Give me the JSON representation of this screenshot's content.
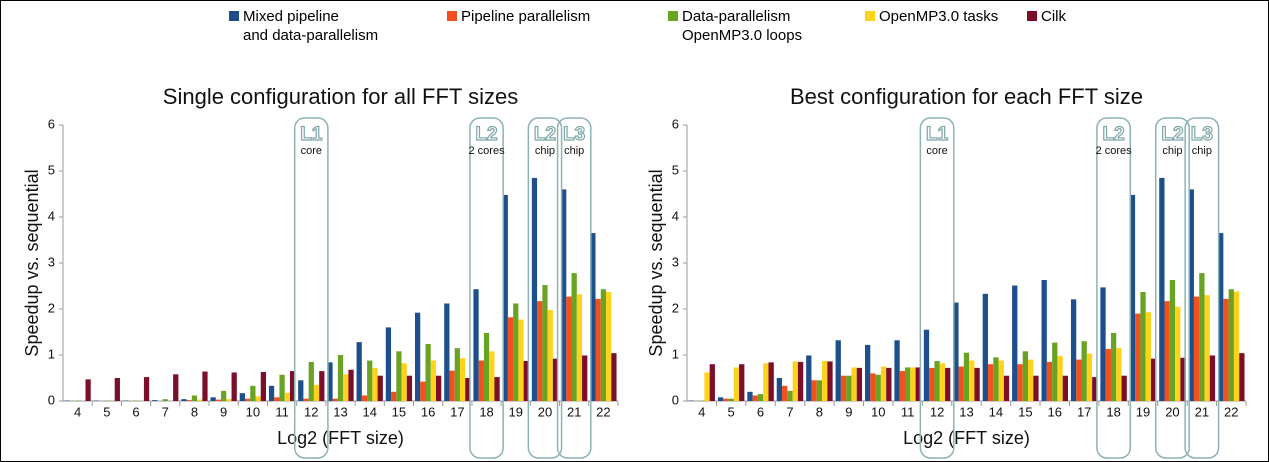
{
  "chart_data": [
    {
      "type": "bar",
      "title": "Single configuration for all FFT sizes",
      "xlabel": "Log2 (FFT size)",
      "ylabel": "Speedup vs. sequential",
      "categories": [
        "4",
        "5",
        "6",
        "7",
        "8",
        "9",
        "10",
        "11",
        "12",
        "13",
        "14",
        "15",
        "16",
        "17",
        "18",
        "19",
        "20",
        "21",
        "22"
      ],
      "ylim": [
        0,
        6
      ],
      "yticks": [
        0,
        1,
        2,
        3,
        4,
        5,
        6
      ],
      "grid": false,
      "series": [
        {
          "name": "Mixed pipeline\nand data-parallelism",
          "color": "#1d4f8c",
          "values": [
            0.01,
            0.01,
            0.01,
            0.02,
            0.04,
            0.08,
            0.17,
            0.33,
            0.45,
            0.84,
            1.28,
            1.6,
            1.92,
            2.12,
            2.43,
            4.48,
            4.85,
            4.6,
            3.65
          ]
        },
        {
          "name": "Pipeline parallelism",
          "color": "#f2501c",
          "values": [
            0,
            0,
            0,
            0,
            0.02,
            0.03,
            0.05,
            0.08,
            0.05,
            0.05,
            0.12,
            0.2,
            0.42,
            0.66,
            0.88,
            1.82,
            2.17,
            2.27,
            2.22
          ]
        },
        {
          "name": "Data-parallelism\nOpenMP3.0 loops",
          "color": "#6aa323",
          "values": [
            0.01,
            0.01,
            0.01,
            0.04,
            0.12,
            0.22,
            0.33,
            0.57,
            0.85,
            1.0,
            0.88,
            1.08,
            1.24,
            1.15,
            1.48,
            2.12,
            2.52,
            2.78,
            2.43
          ]
        },
        {
          "name": "OpenMP3.0 tasks",
          "color": "#ffd21c",
          "values": [
            0,
            0,
            0,
            0,
            0.03,
            0.04,
            0.1,
            0.18,
            0.35,
            0.58,
            0.72,
            0.82,
            0.88,
            0.93,
            1.08,
            1.77,
            1.98,
            2.32,
            2.37
          ]
        },
        {
          "name": "Cilk",
          "color": "#7b0f2a",
          "values": [
            0.47,
            0.5,
            0.52,
            0.58,
            0.64,
            0.62,
            0.63,
            0.65,
            0.65,
            0.68,
            0.55,
            0.55,
            0.55,
            0.5,
            0.52,
            0.87,
            0.92,
            0.99,
            1.04
          ]
        }
      ],
      "annotations": [
        {
          "label": "L1",
          "sublabel": "core",
          "category": "12"
        },
        {
          "label": "L2",
          "sublabel": "2 cores",
          "category": "18"
        },
        {
          "label": "L2",
          "sublabel": "chip",
          "category": "20"
        },
        {
          "label": "L3",
          "sublabel": "chip",
          "category": "21"
        }
      ]
    },
    {
      "type": "bar",
      "title": "Best configuration for each FFT size",
      "xlabel": "Log2 (FFT size)",
      "ylabel": "Speedup vs. sequential",
      "categories": [
        "4",
        "5",
        "6",
        "7",
        "8",
        "9",
        "10",
        "11",
        "12",
        "13",
        "14",
        "15",
        "16",
        "17",
        "18",
        "19",
        "20",
        "21",
        "22"
      ],
      "ylim": [
        0,
        6
      ],
      "yticks": [
        0,
        1,
        2,
        3,
        4,
        5,
        6
      ],
      "grid": false,
      "series": [
        {
          "color": "#1d4f8c",
          "values": [
            0.01,
            0.08,
            0.2,
            0.5,
            0.99,
            1.32,
            1.22,
            1.32,
            1.55,
            2.14,
            2.33,
            2.51,
            2.63,
            2.21,
            2.47,
            4.48,
            4.85,
            4.6,
            3.65
          ]
        },
        {
          "color": "#f2501c",
          "values": [
            0,
            0.05,
            0.12,
            0.33,
            0.45,
            0.55,
            0.6,
            0.65,
            0.72,
            0.75,
            0.8,
            0.8,
            0.85,
            0.9,
            1.13,
            1.9,
            2.17,
            2.27,
            2.22
          ]
        },
        {
          "color": "#6aa323",
          "values": [
            0.01,
            0.05,
            0.15,
            0.22,
            0.45,
            0.55,
            0.57,
            0.73,
            0.87,
            1.05,
            0.95,
            1.08,
            1.27,
            1.3,
            1.48,
            2.37,
            2.63,
            2.78,
            2.43
          ]
        },
        {
          "color": "#ffd21c",
          "values": [
            0.62,
            0.73,
            0.82,
            0.86,
            0.87,
            0.73,
            0.75,
            0.73,
            0.82,
            0.88,
            0.88,
            0.9,
            0.98,
            1.03,
            1.15,
            1.93,
            2.05,
            2.3,
            2.38
          ]
        },
        {
          "color": "#7b0f2a",
          "values": [
            0.8,
            0.8,
            0.84,
            0.85,
            0.86,
            0.72,
            0.72,
            0.73,
            0.72,
            0.72,
            0.55,
            0.55,
            0.55,
            0.52,
            0.55,
            0.92,
            0.94,
            0.99,
            1.04
          ]
        }
      ],
      "annotations": [
        {
          "label": "L1",
          "sublabel": "core",
          "category": "12"
        },
        {
          "label": "L2",
          "sublabel": "2 cores",
          "category": "18"
        },
        {
          "label": "L2",
          "sublabel": "chip",
          "category": "20"
        },
        {
          "label": "L3",
          "sublabel": "chip",
          "category": "21"
        }
      ]
    }
  ]
}
